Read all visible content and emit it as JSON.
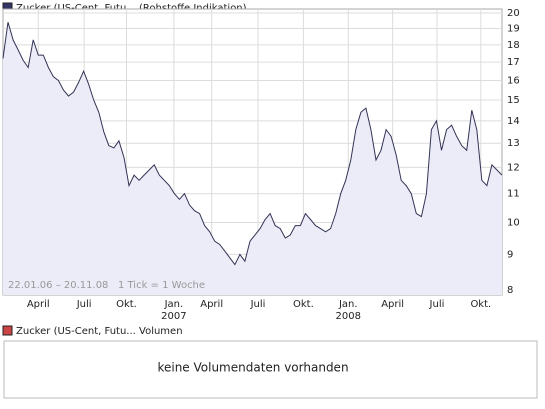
{
  "chart_data": {
    "type": "line",
    "series": [
      {
        "name": "Zucker (US-Cent, Futu... (Rohstoffe Indikation)",
        "color": "#333355",
        "fill": "#ececf8",
        "values": [
          17.2,
          19.4,
          18.3,
          17.7,
          17.1,
          16.7,
          18.3,
          17.4,
          17.4,
          16.7,
          16.2,
          16.0,
          15.5,
          15.2,
          15.4,
          15.9,
          16.5,
          15.8,
          15.0,
          14.4,
          13.5,
          12.9,
          12.8,
          13.1,
          12.4,
          11.3,
          11.7,
          11.5,
          11.7,
          11.9,
          12.1,
          11.7,
          11.5,
          11.3,
          11.0,
          10.8,
          11.0,
          10.6,
          10.4,
          10.3,
          9.9,
          9.7,
          9.4,
          9.3,
          9.1,
          8.9,
          8.7,
          9.0,
          8.8,
          9.4,
          9.6,
          9.8,
          10.1,
          10.3,
          9.9,
          9.8,
          9.5,
          9.6,
          9.9,
          9.9,
          10.3,
          10.1,
          9.9,
          9.8,
          9.7,
          9.8,
          10.3,
          11.0,
          11.5,
          12.3,
          13.6,
          14.4,
          14.6,
          13.6,
          12.3,
          12.7,
          13.6,
          13.3,
          12.5,
          11.5,
          11.3,
          11.0,
          10.3,
          10.2,
          11.0,
          13.6,
          14.0,
          12.7,
          13.6,
          13.8,
          13.3,
          12.9,
          12.7,
          14.5,
          13.6,
          11.5,
          11.3,
          12.1,
          11.9,
          11.7
        ]
      }
    ],
    "annotation": "22.01.06 – 20.11.08   1 Tick = 1 Woche",
    "xlim": [
      0,
      99
    ],
    "xticks": [
      {
        "value": 7.0,
        "label": "April"
      },
      {
        "value": 16.1,
        "label": "Juli"
      },
      {
        "value": 24.5,
        "label": "Okt."
      },
      {
        "value": 33.9,
        "label": "Jan."
      },
      {
        "value": 41.4,
        "label": "April"
      },
      {
        "value": 50.6,
        "label": "Juli"
      },
      {
        "value": 59.6,
        "label": "Okt."
      },
      {
        "value": 68.5,
        "label": "Jan."
      },
      {
        "value": 77.3,
        "label": "April"
      },
      {
        "value": 86.1,
        "label": "Juli"
      },
      {
        "value": 94.8,
        "label": "Okt."
      }
    ],
    "year_labels": [
      {
        "value": 33.9,
        "label": "2007"
      },
      {
        "value": 68.5,
        "label": "2008"
      }
    ],
    "ylim": [
      8,
      20
    ],
    "yticks": [
      8,
      9,
      10,
      11,
      12,
      13,
      14,
      15,
      16,
      17,
      18,
      19,
      20
    ],
    "log_scale": true,
    "grid": true
  },
  "volume_panel": {
    "legend": "Zucker (US-Cent, Futu... Volumen",
    "legend_color": "#cc4444",
    "message": "keine Volumendaten vorhanden"
  }
}
